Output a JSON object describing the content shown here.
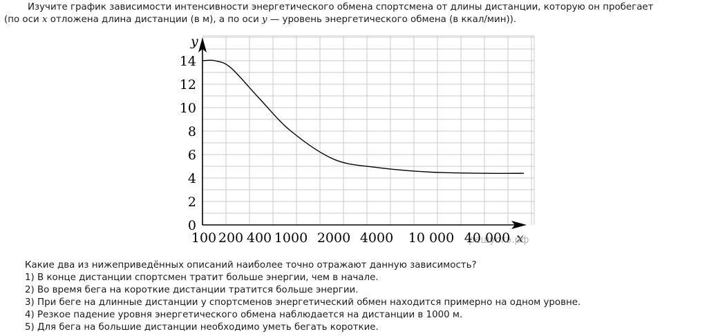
{
  "task": {
    "line1": "Изучите график зависимости интенсивности энергетического обмена спортсмена от длины дистанции, которую он пробегает",
    "line2_pre_x": "(по оси ",
    "x_symbol": "x",
    "line2_mid": " отложена длина дистанции (в м), а по оси ",
    "y_symbol": "y",
    "line2_post": " — уровень энергетического обмена (в ккал/мин))."
  },
  "chart_data": {
    "type": "line",
    "title": "",
    "xlabel": "x",
    "ylabel": "y",
    "x_scale": "categorical (non-uniform distances)",
    "x_tick_labels": [
      "100",
      "200",
      "400",
      "1000",
      "2000",
      "4000",
      "10 000",
      "40 000"
    ],
    "y_ticks": [
      0,
      2,
      4,
      6,
      8,
      10,
      12,
      14
    ],
    "ylim": [
      0,
      16
    ],
    "grid": true,
    "watermark": "решуогэ.рф",
    "series": [
      {
        "name": "energy metabolism",
        "points": [
          {
            "x": "100",
            "y": 14.0
          },
          {
            "x": "200",
            "y": 13.4
          },
          {
            "x": "400",
            "y": 10.8
          },
          {
            "x": "1000",
            "y": 8.0
          },
          {
            "x": "2000",
            "y": 5.6
          },
          {
            "x": "4000",
            "y": 4.9
          },
          {
            "x": "10 000",
            "y": 4.5
          },
          {
            "x": "40 000",
            "y": 4.4
          },
          {
            "x": "end",
            "y": 4.4
          }
        ]
      }
    ]
  },
  "question": {
    "prompt": "Какие два из нижеприведённых описаний наиболее точно отражают данную зависимость?",
    "options": [
      "1) В конце дистанции спортсмен тратит больше энергии, чем в начале.",
      "2) Во время бега на короткие дистанции тратится больше энергии.",
      "3) При беге на длинные дистанции у спортсменов энергетический обмен находится примерно на одном уровне.",
      "4) Резкое падение уровня энергетического обмена наблюдается на дистанции в 1000 м.",
      "5) Для бега на большие дистанции необходимо уметь бегать короткие."
    ]
  }
}
